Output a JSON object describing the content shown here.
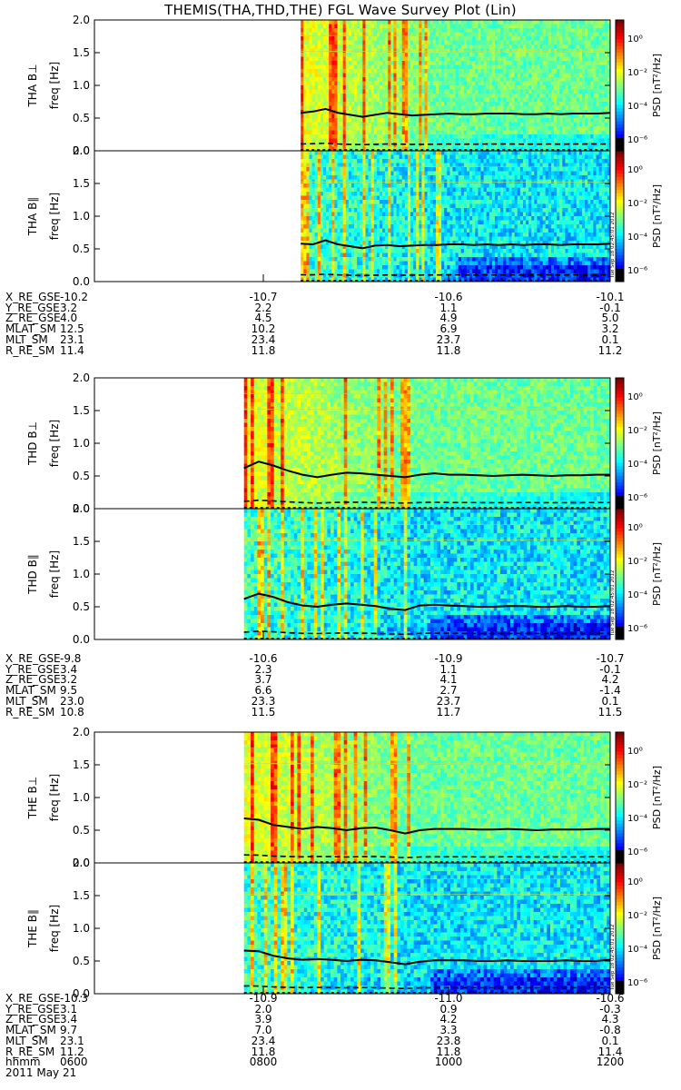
{
  "title": "THEMIS(THA,THD,THE) FGL Wave Survey Plot (Lin)",
  "colorbar": {
    "label": "PSD [nT²/Hz]",
    "ticks": [
      "10⁰",
      "10⁻²",
      "10⁻⁴",
      "10⁻⁶"
    ],
    "side_note": "Tue Sep 18 02:45:01 2012"
  },
  "chart_data": [
    {
      "type": "heatmap",
      "probe": "THA",
      "ylabel_top": "THA B⊥",
      "ylabel_bottom": "THA B∥",
      "yaxis_title": "freq [Hz]",
      "ylim": [
        0,
        2.0
      ],
      "yticks": [
        "2.0",
        "1.5",
        "1.0",
        "0.5",
        "0.0"
      ],
      "data_start_fraction": 0.4,
      "line_fperp": [
        0.58,
        0.6,
        0.64,
        0.58,
        0.55,
        0.52,
        0.55,
        0.58,
        0.56,
        0.54,
        0.55,
        0.56,
        0.57,
        0.56,
        0.56,
        0.57,
        0.57,
        0.57,
        0.56,
        0.56,
        0.57,
        0.56,
        0.57,
        0.57,
        0.57,
        0.58
      ],
      "line_fpar": [
        0.58,
        0.57,
        0.63,
        0.57,
        0.54,
        0.51,
        0.55,
        0.56,
        0.54,
        0.55,
        0.56,
        0.56,
        0.57,
        0.57,
        0.56,
        0.57,
        0.56,
        0.57,
        0.56,
        0.57,
        0.57,
        0.56,
        0.57,
        0.57,
        0.57,
        0.58
      ],
      "ephemeris": [
        {
          "label": "X_RE_GSE",
          "values": [
            "-10.2",
            "-10.7",
            "-10.6",
            "-10.1"
          ]
        },
        {
          "label": "Y_RE_GSE",
          "values": [
            "3.2",
            "2.2",
            "1.1",
            "-0.1"
          ]
        },
        {
          "label": "Z_RE_GSE",
          "values": [
            "4.0",
            "4.5",
            "4.9",
            "5.0"
          ]
        },
        {
          "label": "MLAT_SM",
          "values": [
            "12.5",
            "10.2",
            "6.9",
            "3.2"
          ]
        },
        {
          "label": "MLT_SM",
          "values": [
            "23.1",
            "23.4",
            "23.7",
            "0.1"
          ]
        },
        {
          "label": "R_RE_SM",
          "values": [
            "11.4",
            "11.8",
            "11.8",
            "11.2"
          ]
        }
      ]
    },
    {
      "type": "heatmap",
      "probe": "THD",
      "ylabel_top": "THD B⊥",
      "ylabel_bottom": "THD B∥",
      "yaxis_title": "freq [Hz]",
      "ylim": [
        0,
        2.0
      ],
      "yticks": [
        "2.0",
        "1.5",
        "1.0",
        "0.5",
        "0.0"
      ],
      "data_start_fraction": 0.29,
      "line_fperp": [
        0.62,
        0.72,
        0.66,
        0.58,
        0.52,
        0.48,
        0.52,
        0.55,
        0.54,
        0.52,
        0.5,
        0.48,
        0.52,
        0.54,
        0.52,
        0.52,
        0.51,
        0.5,
        0.51,
        0.52,
        0.51,
        0.5,
        0.51,
        0.51,
        0.52,
        0.52
      ],
      "line_fpar": [
        0.62,
        0.7,
        0.65,
        0.57,
        0.52,
        0.5,
        0.53,
        0.55,
        0.53,
        0.51,
        0.47,
        0.45,
        0.52,
        0.53,
        0.52,
        0.51,
        0.5,
        0.5,
        0.51,
        0.51,
        0.5,
        0.5,
        0.51,
        0.5,
        0.5,
        0.51
      ],
      "ephemeris": [
        {
          "label": "X_RE_GSE",
          "values": [
            "-9.8",
            "-10.6",
            "-10.9",
            "-10.7"
          ]
        },
        {
          "label": "Y_RE_GSE",
          "values": [
            "3.4",
            "2.3",
            "1.1",
            "-0.1"
          ]
        },
        {
          "label": "Z_RE_GSE",
          "values": [
            "3.2",
            "3.7",
            "4.1",
            "4.2"
          ]
        },
        {
          "label": "MLAT_SM",
          "values": [
            "9.5",
            "6.6",
            "2.7",
            "-1.4"
          ]
        },
        {
          "label": "MLT_SM",
          "values": [
            "23.0",
            "23.3",
            "23.7",
            "0.1"
          ]
        },
        {
          "label": "R_RE_SM",
          "values": [
            "10.8",
            "11.5",
            "11.7",
            "11.5"
          ]
        }
      ]
    },
    {
      "type": "heatmap",
      "probe": "THE",
      "ylabel_top": "THE B⊥",
      "ylabel_bottom": "THE B∥",
      "yaxis_title": "freq [Hz]",
      "ylim": [
        0,
        2.0
      ],
      "yticks": [
        "2.0",
        "1.5",
        "1.0",
        "0.5",
        "0.0"
      ],
      "data_start_fraction": 0.29,
      "line_fperp": [
        0.68,
        0.66,
        0.58,
        0.55,
        0.52,
        0.55,
        0.53,
        0.5,
        0.53,
        0.54,
        0.5,
        0.45,
        0.5,
        0.52,
        0.52,
        0.52,
        0.51,
        0.51,
        0.52,
        0.51,
        0.5,
        0.51,
        0.51,
        0.51,
        0.52,
        0.52
      ],
      "line_fpar": [
        0.66,
        0.65,
        0.58,
        0.54,
        0.52,
        0.53,
        0.52,
        0.5,
        0.52,
        0.51,
        0.48,
        0.45,
        0.49,
        0.51,
        0.51,
        0.51,
        0.5,
        0.5,
        0.51,
        0.5,
        0.5,
        0.5,
        0.51,
        0.5,
        0.5,
        0.52
      ],
      "ephemeris": [
        {
          "label": "X_RE_GSE",
          "values": [
            "-10.3",
            "-10.9",
            "-11.0",
            "-10.6"
          ]
        },
        {
          "label": "Y_RE_GSE",
          "values": [
            "3.1",
            "2.0",
            "0.9",
            "-0.3"
          ]
        },
        {
          "label": "Z_RE_GSE",
          "values": [
            "3.4",
            "3.9",
            "4.2",
            "4.3"
          ]
        },
        {
          "label": "MLAT_SM",
          "values": [
            "9.7",
            "7.0",
            "3.3",
            "-0.8"
          ]
        },
        {
          "label": "MLT_SM",
          "values": [
            "23.1",
            "23.4",
            "23.8",
            "0.1"
          ]
        },
        {
          "label": "R_RE_SM",
          "values": [
            "11.2",
            "11.8",
            "11.8",
            "11.4"
          ]
        }
      ]
    }
  ],
  "time_axis": {
    "label": "hhmm",
    "values": [
      "0600",
      "0800",
      "1000",
      "1200"
    ]
  },
  "date": "2011 May 21"
}
